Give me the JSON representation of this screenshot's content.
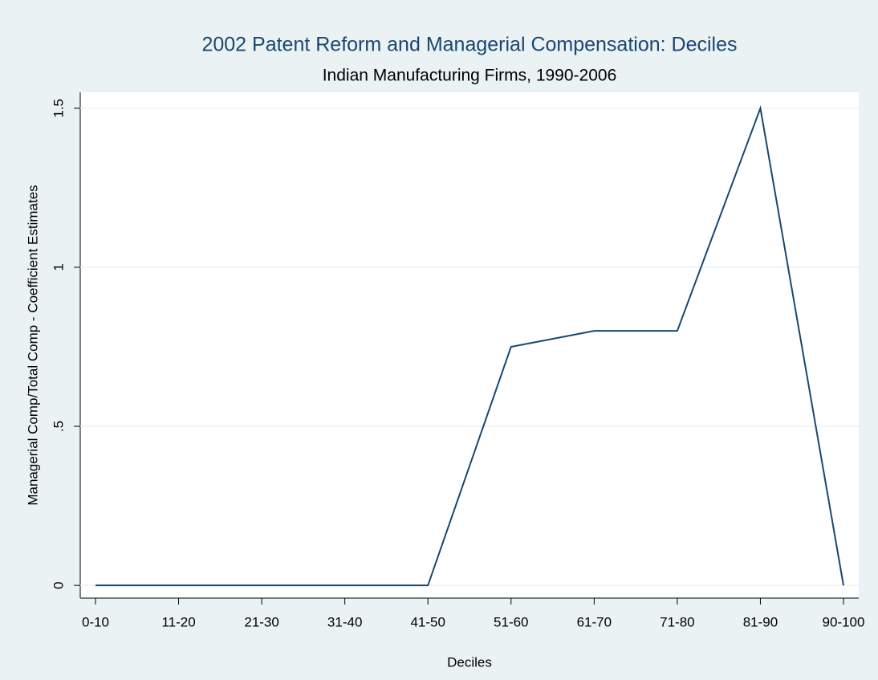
{
  "chart_data": {
    "type": "line",
    "title": "2002 Patent Reform and Managerial Compensation: Deciles",
    "subtitle": "Indian Manufacturing Firms, 1990-2006",
    "x_label": "Deciles",
    "y_label": "Managerial Comp/Total Comp - Coefficient Estimates",
    "categories": [
      "0-10",
      "11-20",
      "21-30",
      "31-40",
      "41-50",
      "51-60",
      "61-70",
      "71-80",
      "81-90",
      "90-100"
    ],
    "series": [
      {
        "color": "#1a476f",
        "values": [
          0,
          0,
          0,
          0,
          0,
          0.75,
          0.8,
          0.8,
          1.5,
          0
        ]
      }
    ],
    "ylim": [
      -0.04,
      1.55
    ],
    "yticks": [
      0,
      {
        "value": 0.5,
        "label": ".5"
      },
      1,
      1.5
    ],
    "grid": true
  }
}
